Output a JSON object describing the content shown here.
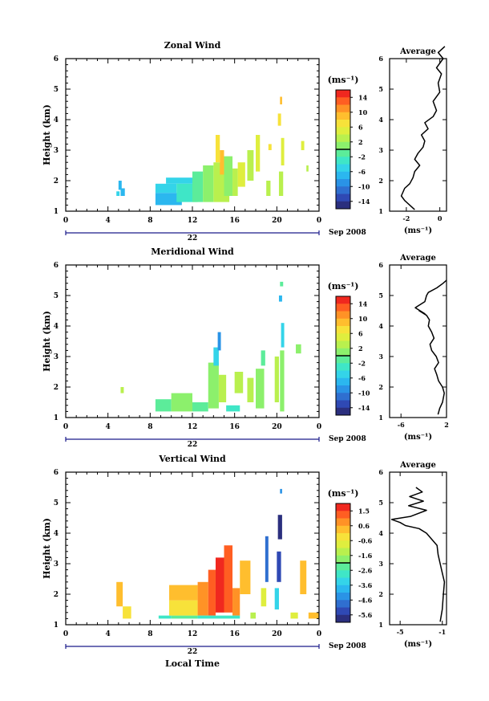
{
  "figure": {
    "date_label": "Sep 2008",
    "xlabel_bottom": "Local Time",
    "axis_color": "#000000",
    "timeline_color": "#1a1a8a",
    "palette": [
      "#2b2f7e",
      "#2f49b4",
      "#2f6fd0",
      "#2a93e6",
      "#2bb7ef",
      "#34d4e9",
      "#3fe6c7",
      "#5cec9a",
      "#8cf06c",
      "#b9f04e",
      "#dfee3e",
      "#f7e23a",
      "#ffbe2e",
      "#ff9226",
      "#ff5e22",
      "#f0281f"
    ]
  },
  "chart_data": [
    {
      "type": "heatmap",
      "title": "Zonal Wind",
      "ylabel": "Height (km)",
      "xticks": [
        "0",
        "4",
        "8",
        "12",
        "16",
        "20",
        "0"
      ],
      "xlim": [
        0,
        24
      ],
      "yticks": [
        "1",
        "2",
        "3",
        "4",
        "5",
        "6"
      ],
      "ylim": [
        1,
        6
      ],
      "timeline_label": "22",
      "colorbar": {
        "unit_label": "(ms⁻¹)",
        "ticks": [
          "14",
          "10",
          "6",
          "2",
          "-2",
          "-6",
          "-10",
          "-14"
        ],
        "range": [
          -16,
          16
        ]
      },
      "cells": [
        {
          "t0": 5.0,
          "t1": 5.3,
          "z0": 1.7,
          "z1": 2.0,
          "v": -7
        },
        {
          "t0": 5.2,
          "t1": 5.6,
          "z0": 1.5,
          "z1": 1.75,
          "v": -8
        },
        {
          "t0": 4.8,
          "t1": 5.1,
          "z0": 1.5,
          "z1": 1.65,
          "v": -6
        },
        {
          "t0": 8.5,
          "t1": 11.0,
          "z0": 1.2,
          "z1": 1.6,
          "v": -7
        },
        {
          "t0": 8.5,
          "t1": 10.5,
          "z0": 1.6,
          "z1": 1.9,
          "v": -6
        },
        {
          "t0": 9.5,
          "t1": 12.0,
          "z0": 1.9,
          "z1": 2.1,
          "v": -5
        },
        {
          "t0": 10.5,
          "t1": 12.5,
          "z0": 1.3,
          "z1": 1.9,
          "v": -4
        },
        {
          "t0": 12.0,
          "t1": 13.0,
          "z0": 1.3,
          "z1": 2.3,
          "v": -2
        },
        {
          "t0": 13.0,
          "t1": 14.0,
          "z0": 1.3,
          "z1": 2.5,
          "v": 1
        },
        {
          "t0": 14.0,
          "t1": 15.5,
          "z0": 1.3,
          "z1": 2.6,
          "v": 3
        },
        {
          "t0": 14.2,
          "t1": 14.6,
          "z0": 2.6,
          "z1": 3.5,
          "v": 6
        },
        {
          "t0": 14.6,
          "t1": 15.0,
          "z0": 2.2,
          "z1": 3.0,
          "v": 8
        },
        {
          "t0": 15.0,
          "t1": 15.8,
          "z0": 1.5,
          "z1": 2.8,
          "v": 0
        },
        {
          "t0": 15.8,
          "t1": 16.3,
          "z0": 1.5,
          "z1": 2.4,
          "v": 2
        },
        {
          "t0": 16.3,
          "t1": 17.0,
          "z0": 1.8,
          "z1": 2.6,
          "v": 4
        },
        {
          "t0": 17.2,
          "t1": 17.8,
          "z0": 2.0,
          "z1": 3.0,
          "v": 3
        },
        {
          "t0": 18.0,
          "t1": 18.4,
          "z0": 2.3,
          "z1": 3.5,
          "v": 5
        },
        {
          "t0": 19.2,
          "t1": 19.5,
          "z0": 3.0,
          "z1": 3.2,
          "v": 6
        },
        {
          "t0": 19.0,
          "t1": 19.4,
          "z0": 1.5,
          "z1": 2.0,
          "v": 3
        },
        {
          "t0": 20.2,
          "t1": 20.6,
          "z0": 1.5,
          "z1": 2.3,
          "v": 2
        },
        {
          "t0": 20.4,
          "t1": 20.7,
          "z0": 2.5,
          "z1": 3.4,
          "v": 4
        },
        {
          "t0": 20.1,
          "t1": 20.4,
          "z0": 3.8,
          "z1": 4.2,
          "v": 7
        },
        {
          "t0": 20.3,
          "t1": 20.5,
          "z0": 4.5,
          "z1": 4.75,
          "v": 8
        },
        {
          "t0": 22.3,
          "t1": 22.6,
          "z0": 3.0,
          "z1": 3.3,
          "v": 4
        },
        {
          "t0": 22.8,
          "t1": 23.0,
          "z0": 2.3,
          "z1": 2.5,
          "v": 3
        }
      ],
      "profile": {
        "title": "Average",
        "xlabel": "(ms⁻¹)",
        "xticks": [
          "-2",
          "0"
        ],
        "xlim": [
          -3,
          0.4
        ],
        "x": [
          -1.5,
          -1.8,
          -2.1,
          -2.3,
          -2.1,
          -1.8,
          -1.6,
          -1.5,
          -1.2,
          -1.5,
          -1.3,
          -1.0,
          -0.9,
          -1.1,
          -0.7,
          -0.9,
          -0.4,
          -0.2,
          -0.4,
          0.0,
          -0.1,
          0.1,
          -0.2,
          0.2,
          -0.1,
          0.3
        ],
        "y": [
          1.05,
          1.2,
          1.35,
          1.5,
          1.75,
          1.9,
          2.1,
          2.3,
          2.5,
          2.7,
          2.9,
          3.1,
          3.3,
          3.5,
          3.7,
          3.9,
          4.1,
          4.3,
          4.6,
          4.9,
          5.2,
          5.5,
          5.7,
          6.0,
          6.2,
          6.4
        ]
      }
    },
    {
      "type": "heatmap",
      "title": "Meridional Wind",
      "ylabel": "Height (km)",
      "xticks": [
        "0",
        "4",
        "8",
        "12",
        "16",
        "20",
        "0"
      ],
      "xlim": [
        0,
        24
      ],
      "yticks": [
        "1",
        "2",
        "3",
        "4",
        "5",
        "6"
      ],
      "ylim": [
        1,
        6
      ],
      "timeline_label": "22",
      "colorbar": {
        "unit_label": "(ms⁻¹)",
        "ticks": [
          "14",
          "10",
          "6",
          "2",
          "-2",
          "-6",
          "-10",
          "-14"
        ],
        "range": [
          -16,
          16
        ]
      },
      "cells": [
        {
          "t0": 5.2,
          "t1": 5.5,
          "z0": 1.8,
          "z1": 2.0,
          "v": 2
        },
        {
          "t0": 8.5,
          "t1": 10.0,
          "z0": 1.2,
          "z1": 1.6,
          "v": -1
        },
        {
          "t0": 10.0,
          "t1": 12.0,
          "z0": 1.2,
          "z1": 1.8,
          "v": 1
        },
        {
          "t0": 12.0,
          "t1": 13.5,
          "z0": 1.2,
          "z1": 1.5,
          "v": -2
        },
        {
          "t0": 13.5,
          "t1": 14.5,
          "z0": 1.3,
          "z1": 2.8,
          "v": 0
        },
        {
          "t0": 14.5,
          "t1": 15.2,
          "z0": 1.5,
          "z1": 2.4,
          "v": 2
        },
        {
          "t0": 14.0,
          "t1": 14.5,
          "z0": 2.7,
          "z1": 3.3,
          "v": -6
        },
        {
          "t0": 14.4,
          "t1": 14.7,
          "z0": 3.2,
          "z1": 3.8,
          "v": -9
        },
        {
          "t0": 15.2,
          "t1": 16.5,
          "z0": 1.2,
          "z1": 1.4,
          "v": -3
        },
        {
          "t0": 16.0,
          "t1": 16.8,
          "z0": 1.8,
          "z1": 2.5,
          "v": 3
        },
        {
          "t0": 17.2,
          "t1": 17.8,
          "z0": 1.5,
          "z1": 2.3,
          "v": 2
        },
        {
          "t0": 18.0,
          "t1": 18.8,
          "z0": 1.3,
          "z1": 2.6,
          "v": 1
        },
        {
          "t0": 18.5,
          "t1": 18.9,
          "z0": 2.7,
          "z1": 3.2,
          "v": -2
        },
        {
          "t0": 19.8,
          "t1": 20.2,
          "z0": 1.5,
          "z1": 3.0,
          "v": 2
        },
        {
          "t0": 20.3,
          "t1": 20.7,
          "z0": 1.2,
          "z1": 3.2,
          "v": 0
        },
        {
          "t0": 20.4,
          "t1": 20.7,
          "z0": 3.3,
          "z1": 4.1,
          "v": -6
        },
        {
          "t0": 20.2,
          "t1": 20.5,
          "z0": 4.8,
          "z1": 5.0,
          "v": -8
        },
        {
          "t0": 20.3,
          "t1": 20.6,
          "z0": 5.3,
          "z1": 5.45,
          "v": -1
        },
        {
          "t0": 21.8,
          "t1": 22.3,
          "z0": 3.1,
          "z1": 3.4,
          "v": 1
        }
      ],
      "profile": {
        "title": "Average",
        "xlabel": "(ms⁻¹)",
        "xticks": [
          "-6",
          "2"
        ],
        "xlim": [
          -8,
          2
        ],
        "x": [
          0.5,
          0.8,
          1.3,
          1.6,
          1.3,
          0.6,
          0.3,
          -0.1,
          0.6,
          0.2,
          -0.6,
          -0.9,
          -0.2,
          -0.6,
          -1.2,
          -1.0,
          -1.5,
          -2.8,
          -1.8,
          -3.5,
          -1.8,
          -1.5,
          -1.2,
          0.3,
          1.4,
          2.0
        ],
        "y": [
          1.1,
          1.3,
          1.5,
          1.8,
          2.0,
          2.2,
          2.4,
          2.6,
          2.8,
          3.0,
          3.2,
          3.4,
          3.6,
          3.8,
          4.0,
          4.2,
          4.35,
          4.5,
          4.4,
          4.6,
          4.8,
          5.0,
          5.1,
          5.25,
          5.4,
          5.5
        ]
      }
    },
    {
      "type": "heatmap",
      "title": "Vertical Wind",
      "ylabel": "Height (km)",
      "xlabel": "Local Time",
      "xticks": [
        "0",
        "4",
        "8",
        "12",
        "16",
        "20",
        "0"
      ],
      "xlim": [
        0,
        24
      ],
      "yticks": [
        "1",
        "2",
        "3",
        "4",
        "5",
        "6"
      ],
      "ylim": [
        1,
        6
      ],
      "timeline_label": "22",
      "colorbar": {
        "unit_label": "(ms⁻¹)",
        "ticks": [
          "1.5",
          "0.6",
          "-0.6",
          "-1.6",
          "-2.6",
          "-3.6",
          "-4.6",
          "-5.6"
        ],
        "range": [
          -6,
          2
        ]
      },
      "cells": [
        {
          "t0": 4.8,
          "t1": 5.4,
          "z0": 1.6,
          "z1": 2.4,
          "v": 0.4
        },
        {
          "t0": 5.4,
          "t1": 6.2,
          "z0": 1.2,
          "z1": 1.6,
          "v": -0.2
        },
        {
          "t0": 8.8,
          "t1": 10.0,
          "z0": 1.2,
          "z1": 1.3,
          "v": -3.0
        },
        {
          "t0": 10.0,
          "t1": 12.5,
          "z0": 1.2,
          "z1": 1.3,
          "v": -2.5
        },
        {
          "t0": 9.8,
          "t1": 12.5,
          "z0": 1.3,
          "z1": 1.8,
          "v": -0.3
        },
        {
          "t0": 9.8,
          "t1": 12.5,
          "z0": 1.8,
          "z1": 2.3,
          "v": 0.2
        },
        {
          "t0": 12.5,
          "t1": 13.5,
          "z0": 1.3,
          "z1": 2.4,
          "v": 0.6
        },
        {
          "t0": 13.5,
          "t1": 14.2,
          "z0": 1.3,
          "z1": 2.8,
          "v": 1.0
        },
        {
          "t0": 14.2,
          "t1": 15.0,
          "z0": 1.4,
          "z1": 3.2,
          "v": 1.5
        },
        {
          "t0": 15.0,
          "t1": 15.8,
          "z0": 1.4,
          "z1": 3.6,
          "v": 1.2
        },
        {
          "t0": 15.8,
          "t1": 16.5,
          "z0": 1.3,
          "z1": 2.2,
          "v": 0.5
        },
        {
          "t0": 12.5,
          "t1": 16.5,
          "z0": 1.2,
          "z1": 1.3,
          "v": -2.8
        },
        {
          "t0": 16.5,
          "t1": 17.5,
          "z0": 2.0,
          "z1": 3.1,
          "v": 0.2
        },
        {
          "t0": 17.5,
          "t1": 18.0,
          "z0": 1.2,
          "z1": 1.4,
          "v": -1.5
        },
        {
          "t0": 18.5,
          "t1": 19.0,
          "z0": 1.6,
          "z1": 2.2,
          "v": -0.8
        },
        {
          "t0": 18.9,
          "t1": 19.2,
          "z0": 2.4,
          "z1": 3.9,
          "v": -4.8
        },
        {
          "t0": 19.8,
          "t1": 20.2,
          "z0": 1.5,
          "z1": 2.2,
          "v": -3.2
        },
        {
          "t0": 20.0,
          "t1": 20.4,
          "z0": 2.4,
          "z1": 3.4,
          "v": -5.5
        },
        {
          "t0": 20.1,
          "t1": 20.5,
          "z0": 3.8,
          "z1": 4.6,
          "v": -5.8
        },
        {
          "t0": 20.3,
          "t1": 20.5,
          "z0": 5.3,
          "z1": 5.45,
          "v": -4.2
        },
        {
          "t0": 21.3,
          "t1": 22.0,
          "z0": 1.2,
          "z1": 1.4,
          "v": -0.6
        },
        {
          "t0": 22.2,
          "t1": 22.8,
          "z0": 2.0,
          "z1": 3.1,
          "v": 0.3
        },
        {
          "t0": 23.0,
          "t1": 24.0,
          "z0": 1.2,
          "z1": 1.4,
          "v": 0.0
        }
      ],
      "profile": {
        "title": "Average",
        "xlabel": "(ms⁻¹)",
        "xticks": [
          "-5",
          "-1"
        ],
        "xlim": [
          -6,
          -0.6
        ],
        "x": [
          -1.2,
          -1.0,
          -0.9,
          -0.8,
          -1.0,
          -1.2,
          -1.4,
          -1.5,
          -2.0,
          -2.5,
          -3.2,
          -4.5,
          -5.0,
          -5.8,
          -4.0,
          -2.5,
          -4.2,
          -2.8,
          -4.1,
          -2.9,
          -3.5
        ],
        "y": [
          1.1,
          1.5,
          2.0,
          2.4,
          2.7,
          3.0,
          3.3,
          3.6,
          3.8,
          4.0,
          4.15,
          4.25,
          4.35,
          4.45,
          4.55,
          4.75,
          4.9,
          5.05,
          5.2,
          5.35,
          5.5
        ]
      }
    }
  ]
}
